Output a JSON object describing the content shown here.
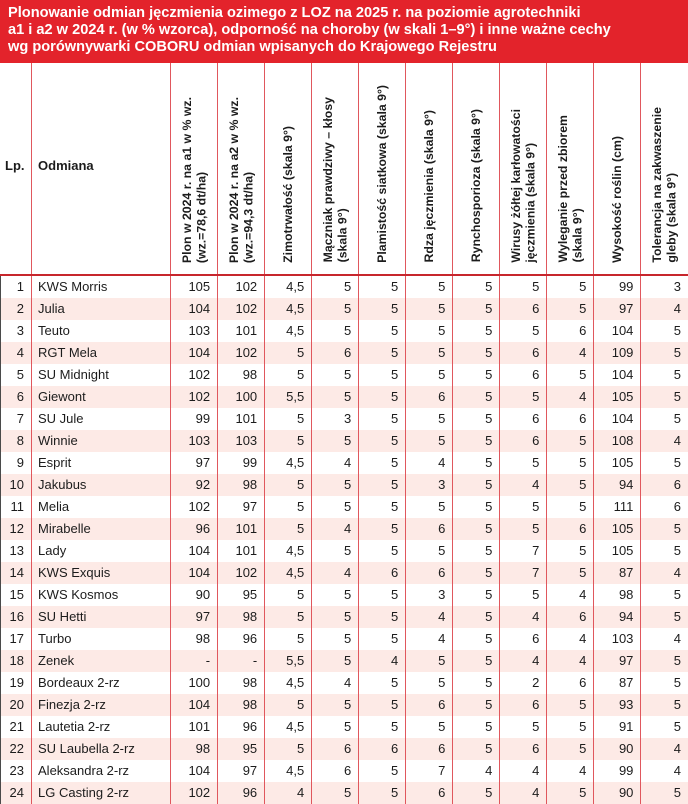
{
  "title": "Plonowanie odmian jęczmienia ozimego z LOZ na 2025 r. na poziomie agrotechniki\na1 i a2 w 2024 r. (w % wzorca), odporność na choroby (w skali 1–9°) i inne ważne cechy\nwg porównywarki COBORU odmian wpisanych do Krajowego Rejestru",
  "colors": {
    "title_bg": "#e3232b",
    "title_text": "#ffffff",
    "grid_line": "#e0575d",
    "header_rule": "#c7262c",
    "row_alt_bg": "#fdeae6",
    "body_text": "#1c1c1c"
  },
  "table": {
    "columns": [
      {
        "key": "lp",
        "label": "Lp.",
        "rotated": false
      },
      {
        "key": "odmiana",
        "label": "Odmiana",
        "rotated": false
      },
      {
        "key": "plon_a1",
        "label": "Plon w 2024 r. na a1 w % wz.\n(wz.=78,6 dt/ha)",
        "rotated": true
      },
      {
        "key": "plon_a2",
        "label": "Plon w 2024 r. na a2 w % wz.\n(wz.=94,3 dt/ha)",
        "rotated": true
      },
      {
        "key": "zimotrwalosc",
        "label": "Zimotrwałość (skala 9°)",
        "rotated": true
      },
      {
        "key": "maczniak",
        "label": "Mączniak prawdziwy – kłosy\n(skala 9°)",
        "rotated": true
      },
      {
        "key": "plamistosc",
        "label": "Plamistość siatkowa (skala 9°)",
        "rotated": true
      },
      {
        "key": "rdza",
        "label": "Rdza jęczmienia (skala 9°)",
        "rotated": true
      },
      {
        "key": "rynchosporioza",
        "label": "Rynchosporioza (skala 9°)",
        "rotated": true
      },
      {
        "key": "wirusy",
        "label": "Wirusy żółtej karłowatości\njęczmienia (skala 9°)",
        "rotated": true
      },
      {
        "key": "wyleganie",
        "label": "Wyleganie przed zbiorem\n(skala 9°)",
        "rotated": true
      },
      {
        "key": "wysokosc",
        "label": "Wysokość roślin (cm)",
        "rotated": true
      },
      {
        "key": "tolerancja",
        "label": "Tolerancja na zakwaszenie\ngleby (skala 9°)",
        "rotated": true
      }
    ],
    "rows": [
      {
        "lp": "1",
        "odmiana": "KWS Morris",
        "values": [
          "105",
          "102",
          "4,5",
          "5",
          "5",
          "5",
          "5",
          "5",
          "5",
          "99",
          "3"
        ]
      },
      {
        "lp": "2",
        "odmiana": "Julia",
        "values": [
          "104",
          "102",
          "4,5",
          "5",
          "5",
          "5",
          "5",
          "6",
          "5",
          "97",
          "4"
        ]
      },
      {
        "lp": "3",
        "odmiana": "Teuto",
        "values": [
          "103",
          "101",
          "4,5",
          "5",
          "5",
          "5",
          "5",
          "5",
          "6",
          "104",
          "5"
        ]
      },
      {
        "lp": "4",
        "odmiana": "RGT Mela",
        "values": [
          "104",
          "102",
          "5",
          "6",
          "5",
          "5",
          "5",
          "6",
          "4",
          "109",
          "5"
        ]
      },
      {
        "lp": "5",
        "odmiana": "SU Midnight",
        "values": [
          "102",
          "98",
          "5",
          "5",
          "5",
          "5",
          "5",
          "6",
          "5",
          "104",
          "5"
        ]
      },
      {
        "lp": "6",
        "odmiana": "Giewont",
        "values": [
          "102",
          "100",
          "5,5",
          "5",
          "5",
          "6",
          "5",
          "5",
          "4",
          "105",
          "5"
        ]
      },
      {
        "lp": "7",
        "odmiana": "SU Jule",
        "values": [
          "99",
          "101",
          "5",
          "3",
          "5",
          "5",
          "5",
          "6",
          "6",
          "104",
          "5"
        ]
      },
      {
        "lp": "8",
        "odmiana": "Winnie",
        "values": [
          "103",
          "103",
          "5",
          "5",
          "5",
          "5",
          "5",
          "6",
          "5",
          "108",
          "4"
        ]
      },
      {
        "lp": "9",
        "odmiana": "Esprit",
        "values": [
          "97",
          "99",
          "4,5",
          "4",
          "5",
          "4",
          "5",
          "5",
          "5",
          "105",
          "5"
        ]
      },
      {
        "lp": "10",
        "odmiana": "Jakubus",
        "values": [
          "92",
          "98",
          "5",
          "5",
          "5",
          "3",
          "5",
          "4",
          "5",
          "94",
          "6"
        ]
      },
      {
        "lp": "11",
        "odmiana": "Melia",
        "values": [
          "102",
          "97",
          "5",
          "5",
          "5",
          "5",
          "5",
          "5",
          "5",
          "111",
          "6"
        ]
      },
      {
        "lp": "12",
        "odmiana": "Mirabelle",
        "values": [
          "96",
          "101",
          "5",
          "4",
          "5",
          "6",
          "5",
          "5",
          "6",
          "105",
          "5"
        ]
      },
      {
        "lp": "13",
        "odmiana": "Lady",
        "values": [
          "104",
          "101",
          "4,5",
          "5",
          "5",
          "5",
          "5",
          "7",
          "5",
          "105",
          "5"
        ]
      },
      {
        "lp": "14",
        "odmiana": "KWS Exquis",
        "values": [
          "104",
          "102",
          "4,5",
          "4",
          "6",
          "6",
          "5",
          "7",
          "5",
          "87",
          "4"
        ]
      },
      {
        "lp": "15",
        "odmiana": "KWS Kosmos",
        "values": [
          "90",
          "95",
          "5",
          "5",
          "5",
          "3",
          "5",
          "5",
          "4",
          "98",
          "5"
        ]
      },
      {
        "lp": "16",
        "odmiana": "SU Hetti",
        "values": [
          "97",
          "98",
          "5",
          "5",
          "5",
          "4",
          "5",
          "4",
          "6",
          "94",
          "5"
        ]
      },
      {
        "lp": "17",
        "odmiana": "Turbo",
        "values": [
          "98",
          "96",
          "5",
          "5",
          "5",
          "4",
          "5",
          "6",
          "4",
          "103",
          "4"
        ]
      },
      {
        "lp": "18",
        "odmiana": "Zenek",
        "values": [
          "-",
          "-",
          "5,5",
          "5",
          "4",
          "5",
          "5",
          "4",
          "4",
          "97",
          "5"
        ]
      },
      {
        "lp": "19",
        "odmiana": "Bordeaux 2-rz",
        "values": [
          "100",
          "98",
          "4,5",
          "4",
          "5",
          "5",
          "5",
          "2",
          "6",
          "87",
          "5"
        ]
      },
      {
        "lp": "20",
        "odmiana": "Finezja 2-rz",
        "values": [
          "104",
          "98",
          "5",
          "5",
          "5",
          "6",
          "5",
          "6",
          "5",
          "93",
          "5"
        ]
      },
      {
        "lp": "21",
        "odmiana": "Lautetia 2-rz",
        "values": [
          "101",
          "96",
          "4,5",
          "5",
          "5",
          "5",
          "5",
          "5",
          "5",
          "91",
          "5"
        ]
      },
      {
        "lp": "22",
        "odmiana": "SU Laubella 2-rz",
        "values": [
          "98",
          "95",
          "5",
          "6",
          "6",
          "6",
          "5",
          "6",
          "5",
          "90",
          "4"
        ]
      },
      {
        "lp": "23",
        "odmiana": "Aleksandra 2-rz",
        "values": [
          "104",
          "97",
          "4,5",
          "6",
          "5",
          "7",
          "4",
          "4",
          "4",
          "99",
          "4"
        ]
      },
      {
        "lp": "24",
        "odmiana": "LG Casting 2-rz",
        "values": [
          "102",
          "96",
          "4",
          "5",
          "5",
          "6",
          "5",
          "4",
          "5",
          "90",
          "5"
        ]
      }
    ]
  }
}
